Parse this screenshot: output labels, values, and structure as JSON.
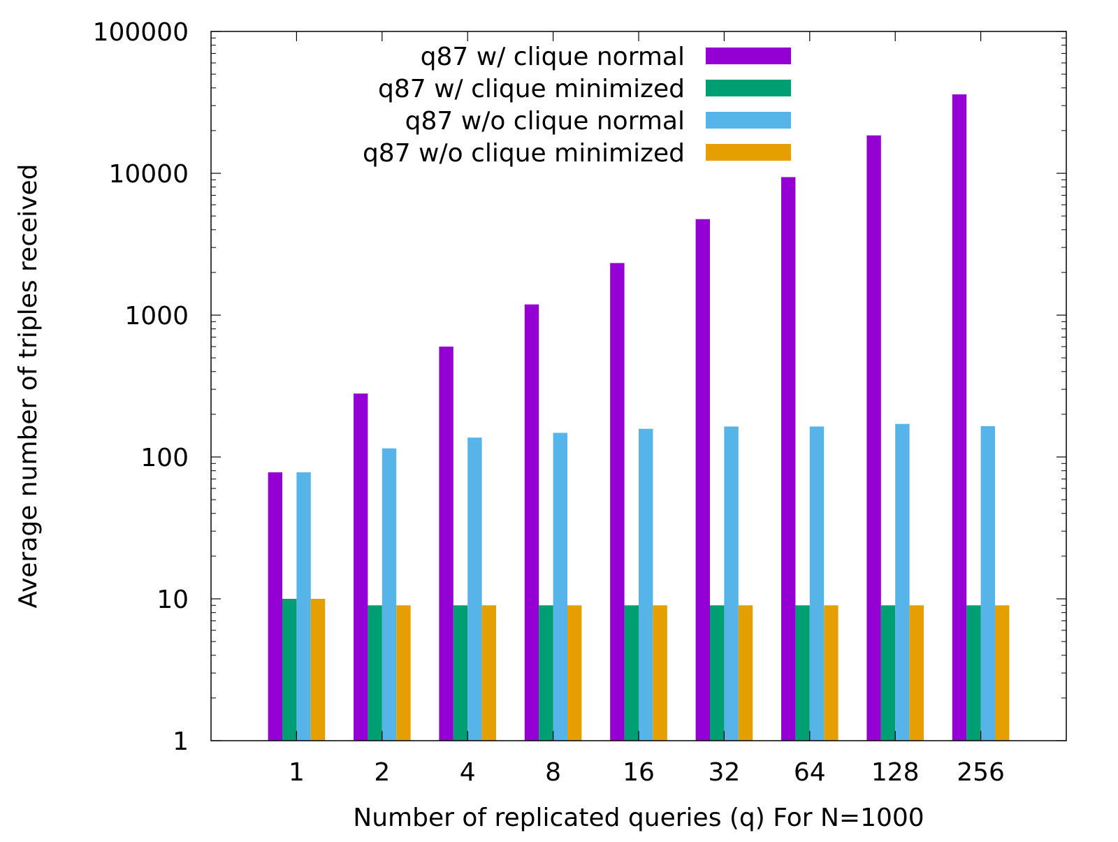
{
  "chart_data": {
    "type": "bar",
    "title": "",
    "xlabel": "Number of replicated queries (q) For N=1000",
    "ylabel": "Average number of triples received",
    "yscale": "log",
    "ylim": [
      1,
      100000
    ],
    "yticks": [
      1,
      10,
      100,
      1000,
      10000,
      100000
    ],
    "ytick_labels": [
      "1",
      "10",
      "100",
      "1000",
      "10000",
      "100000"
    ],
    "categories": [
      "1",
      "2",
      "4",
      "8",
      "16",
      "32",
      "64",
      "128",
      "256"
    ],
    "legend_position": "top-right",
    "grid": false,
    "series": [
      {
        "name": "q87 w/ clique normal",
        "color": "#9400d3",
        "values": [
          78,
          280,
          600,
          1190,
          2330,
          4750,
          9400,
          18500,
          36000
        ]
      },
      {
        "name": "q87 w/ clique minimized",
        "color": "#009e73",
        "values": [
          10,
          9,
          9,
          9,
          9,
          9,
          9,
          9,
          9
        ]
      },
      {
        "name": "q87 w/o clique normal",
        "color": "#56b4e9",
        "values": [
          78,
          115,
          137,
          148,
          158,
          164,
          164,
          171,
          165
        ]
      },
      {
        "name": "q87 w/o clique minimized",
        "color": "#e69f00",
        "values": [
          10,
          9,
          9,
          9,
          9,
          9,
          9,
          9,
          9
        ]
      }
    ]
  }
}
